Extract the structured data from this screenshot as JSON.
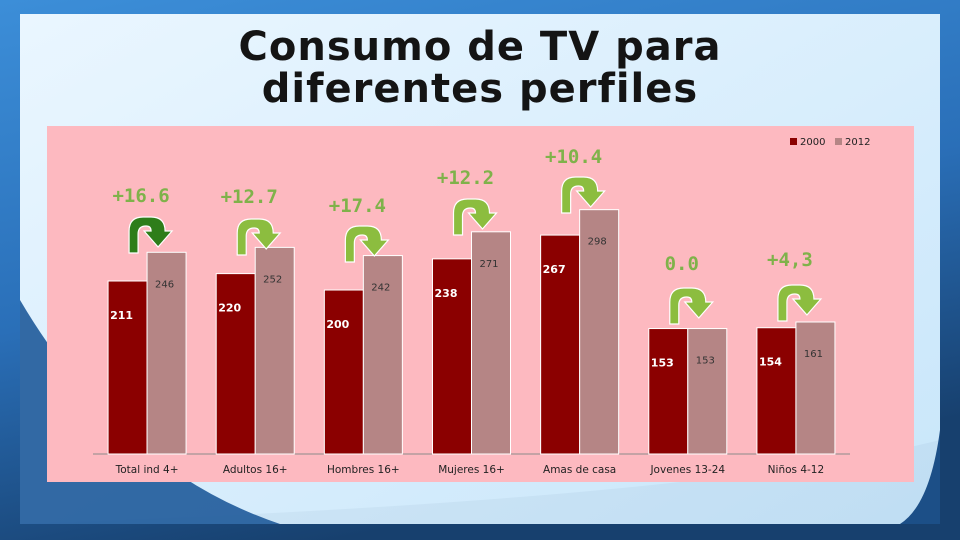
{
  "slide": {
    "title": "Consumo de TV para diferentes perfiles"
  },
  "colors": {
    "bar_2000": "#8b0000",
    "bar_2012": "#b58585",
    "panel_bg": "#fdb9c0",
    "arrow_green": "#8cbd3f",
    "arrow_dark_green": "#2e7d1a",
    "delta_text": "#7fb24a"
  },
  "chart_data": {
    "type": "bar",
    "title": "",
    "xlabel": "",
    "ylabel": "",
    "categories": [
      "Total ind 4+",
      "Adultos 16+",
      "Hombres 16+",
      "Mujeres 16+",
      "Amas de casa",
      "Jovenes 13-24",
      "Niños 4-12"
    ],
    "series": [
      {
        "name": "2000",
        "values": [
          211,
          220,
          200,
          238,
          267,
          153,
          154
        ]
      },
      {
        "name": "2012",
        "values": [
          246,
          252,
          242,
          271,
          298,
          153,
          161
        ]
      }
    ],
    "data_labels": {
      "2000": [
        "211",
        "220",
        "200",
        "238",
        "267",
        "153",
        "154"
      ],
      "2012": [
        "246",
        "252",
        "242",
        "271",
        "298",
        "153",
        "161"
      ]
    },
    "annotations": [
      "+16.6",
      "+12.7",
      "+17.4",
      "+12.2",
      "+10.4",
      "0.0",
      "+4,3"
    ],
    "legend": "top-right",
    "grid": false
  }
}
